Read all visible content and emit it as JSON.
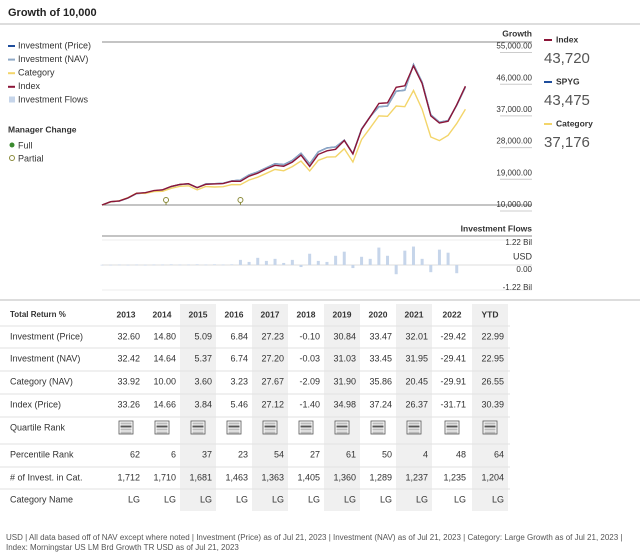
{
  "chart_data": [
    {
      "type": "line",
      "title": "Growth of 10,000",
      "axis_title": "Growth",
      "x": [
        2013,
        2013.25,
        2013.5,
        2013.75,
        2014,
        2014.25,
        2014.5,
        2014.75,
        2015,
        2015.25,
        2015.5,
        2015.75,
        2016,
        2016.25,
        2016.5,
        2016.75,
        2017,
        2017.25,
        2017.5,
        2017.75,
        2018,
        2018.25,
        2018.5,
        2018.75,
        2019,
        2019.25,
        2019.5,
        2019.75,
        2020,
        2020.25,
        2020.5,
        2020.75,
        2021,
        2021.25,
        2021.5,
        2021.75,
        2022,
        2022.25,
        2022.5,
        2022.75,
        2023,
        2023.25,
        2023.5
      ],
      "xlim": [
        2013,
        2024.5
      ],
      "ylim": [
        10000,
        56000
      ],
      "yticks": [
        {
          "value": 55000,
          "label": "55,000.00"
        },
        {
          "value": 46000,
          "label": "46,000.00"
        },
        {
          "value": 37000,
          "label": "37,000.00"
        },
        {
          "value": 28000,
          "label": "28,000.00"
        },
        {
          "value": 19000,
          "label": "19,000.00"
        },
        {
          "value": 10000,
          "label": "10,000.00"
        }
      ],
      "series": [
        {
          "name": "Investment (Price)",
          "color": "#1f4e9c",
          "values": [
            10000,
            10930,
            11120,
            11990,
            13260,
            13400,
            14000,
            14250,
            15220,
            15830,
            16030,
            14950,
            15990,
            16050,
            16160,
            16850,
            17080,
            18560,
            19400,
            20600,
            21730,
            21460,
            22650,
            24700,
            21700,
            25100,
            26200,
            26500,
            28400,
            24600,
            31600,
            35100,
            37900,
            38100,
            42300,
            42600,
            49900,
            44900,
            35600,
            33500,
            34000,
            38300,
            43475
          ]
        },
        {
          "name": "Investment (NAV)",
          "color": "#8fa9c6",
          "values": [
            10000,
            10920,
            11110,
            11980,
            13240,
            13380,
            13990,
            14240,
            15180,
            15790,
            15990,
            14900,
            15990,
            16040,
            16150,
            16840,
            17070,
            18540,
            19380,
            20580,
            21710,
            21450,
            22640,
            24690,
            21690,
            25080,
            26190,
            26480,
            28390,
            24590,
            31590,
            35080,
            37880,
            38080,
            42280,
            42580,
            49880,
            44880,
            35580,
            33480,
            33990,
            38290,
            43460
          ]
        },
        {
          "name": "Category",
          "color": "#f3d56a",
          "values": [
            10000,
            10900,
            11200,
            12100,
            13392,
            13300,
            13800,
            13900,
            14731,
            15300,
            15450,
            14300,
            15261,
            15100,
            15200,
            15800,
            15754,
            17100,
            17900,
            19000,
            20113,
            19700,
            20900,
            22500,
            19693,
            22700,
            23600,
            23700,
            25975,
            22200,
            28600,
            31900,
            35290,
            35200,
            38100,
            37900,
            42507,
            37200,
            29300,
            28300,
            29794,
            33100,
            37176
          ]
        },
        {
          "name": "Index",
          "color": "#8b1538",
          "values": [
            10000,
            10950,
            11150,
            12030,
            13326,
            13480,
            14080,
            14330,
            15280,
            15860,
            16040,
            14950,
            15867,
            15980,
            16090,
            16760,
            16733,
            18190,
            19020,
            20250,
            21271,
            20980,
            22180,
            24170,
            20973,
            24360,
            25400,
            25810,
            28310,
            24500,
            31470,
            35080,
            38853,
            39020,
            43430,
            43840,
            49487,
            44500,
            35300,
            33270,
            33795,
            38450,
            43720
          ]
        }
      ],
      "manager_change": {
        "title": "Manager Change",
        "full": {
          "name": "Full",
          "color": "#3a8a2e"
        },
        "partial": {
          "name": "Partial",
          "color": "#8a8a3a"
        },
        "partial_x": [
          2014.85,
          2017.0
        ]
      },
      "summary": [
        {
          "name": "Index",
          "label": "43,720",
          "color": "#8b1538"
        },
        {
          "name": "SPYG",
          "label": "43,475",
          "color": "#1f4e9c"
        },
        {
          "name": "Category",
          "label": "37,176",
          "color": "#f3d56a"
        }
      ]
    },
    {
      "type": "bar",
      "title": "Investment Flows",
      "color": "#c6d5ea",
      "y_unit": "USD",
      "x": [
        2013,
        2013.25,
        2013.5,
        2013.75,
        2014,
        2014.25,
        2014.5,
        2014.75,
        2015,
        2015.25,
        2015.5,
        2015.75,
        2016,
        2016.25,
        2016.5,
        2016.75,
        2017,
        2017.25,
        2017.5,
        2017.75,
        2018,
        2018.25,
        2018.5,
        2018.75,
        2019,
        2019.25,
        2019.5,
        2019.75,
        2020,
        2020.25,
        2020.5,
        2020.75,
        2021,
        2021.25,
        2021.5,
        2021.75,
        2022,
        2022.25,
        2022.5,
        2022.75,
        2023,
        2023.25
      ],
      "xlim": [
        2013,
        2024.5
      ],
      "values": [
        0.01,
        0.01,
        0.02,
        0.01,
        0.02,
        0.01,
        0.02,
        0.02,
        0.03,
        0.02,
        0.02,
        0.03,
        0.02,
        0.03,
        0.02,
        0.03,
        0.25,
        0.15,
        0.35,
        0.2,
        0.3,
        0.1,
        0.25,
        -0.1,
        0.55,
        0.2,
        0.15,
        0.45,
        0.65,
        -0.15,
        0.4,
        0.3,
        0.85,
        0.45,
        -0.45,
        0.7,
        0.9,
        0.3,
        -0.35,
        0.75,
        0.6,
        -0.4
      ],
      "ylim": [
        -1.22,
        1.22
      ],
      "yticks": [
        {
          "value": 1.22,
          "label": "1.22 Bil"
        },
        {
          "value": 0,
          "label": "0.00"
        },
        {
          "value": -1.22,
          "label": "-1.22 Bil"
        }
      ]
    }
  ],
  "legend_extra": "Investment Flows",
  "table": {
    "header": [
      "Total Return %",
      "2013",
      "2014",
      "2015",
      "2016",
      "2017",
      "2018",
      "2019",
      "2020",
      "2021",
      "2022",
      "YTD"
    ],
    "rows": [
      [
        "Investment (Price)",
        "32.60",
        "14.80",
        "5.09",
        "6.84",
        "27.23",
        "-0.10",
        "30.84",
        "33.47",
        "32.01",
        "-29.42",
        "22.99"
      ],
      [
        "Investment (NAV)",
        "32.42",
        "14.64",
        "5.37",
        "6.74",
        "27.20",
        "-0.03",
        "31.03",
        "33.45",
        "31.95",
        "-29.41",
        "22.95"
      ],
      [
        "Category (NAV)",
        "33.92",
        "10.00",
        "3.60",
        "3.23",
        "27.67",
        "-2.09",
        "31.90",
        "35.86",
        "20.45",
        "-29.91",
        "26.55"
      ],
      [
        "Index (Price)",
        "33.26",
        "14.66",
        "3.84",
        "5.46",
        "27.12",
        "-1.40",
        "34.98",
        "37.24",
        "26.37",
        "-31.71",
        "30.39"
      ],
      [
        "Quartile Rank"
      ],
      [
        "Percentile Rank",
        "62",
        "6",
        "37",
        "23",
        "54",
        "27",
        "61",
        "50",
        "4",
        "48",
        "64"
      ],
      [
        "# of Invest. in Cat.",
        "1,712",
        "1,710",
        "1,681",
        "1,463",
        "1,363",
        "1,405",
        "1,360",
        "1,289",
        "1,237",
        "1,235",
        "1,204"
      ],
      [
        "Category Name",
        "LG",
        "LG",
        "LG",
        "LG",
        "LG",
        "LG",
        "LG",
        "LG",
        "LG",
        "LG",
        "LG"
      ]
    ]
  },
  "footer": "USD | All data based off of NAV except where noted | Investment (Price) as of Jul 21, 2023 | Investment (NAV) as of Jul 21, 2023 | Category: Large Growth as of Jul 21, 2023 | Index: Morningstar US LM Brd Growth TR USD as of Jul 21, 2023"
}
